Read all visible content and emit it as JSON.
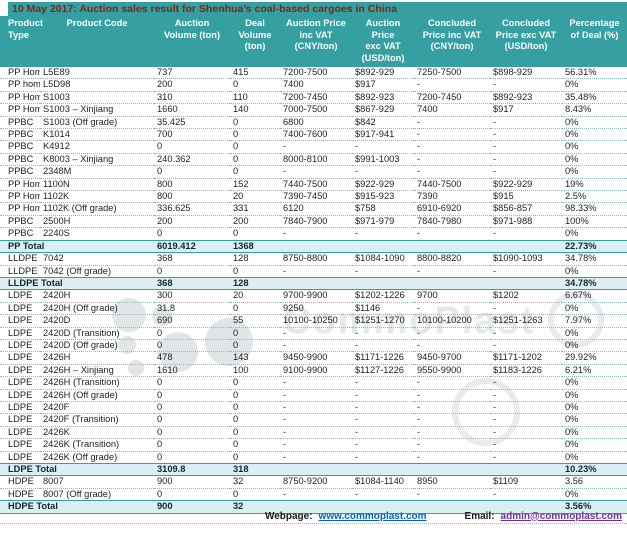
{
  "title": "10 May 2017: Auction sales result for Shenhua’s coal-based cargoes in China",
  "colors": {
    "header_teal": "#359fa1",
    "title_text": "#7b2715",
    "total_row_bg": "#daeef3",
    "row_divider": "#8fb9bf",
    "webpage_link": "#0563c1",
    "email_link": "#7030a0"
  },
  "columns": [
    {
      "key": "product-type",
      "label": "Product\nType"
    },
    {
      "key": "product-code",
      "label": "Product Code"
    },
    {
      "key": "auction-volume",
      "label": "Auction\nVolume (ton)"
    },
    {
      "key": "deal-volume",
      "label": "Deal\nVolume\n(ton)"
    },
    {
      "key": "auction-price-inc-vat",
      "label": "Auction Price\ninc VAT\n(CNY/ton)"
    },
    {
      "key": "auction-price-exc-vat",
      "label": "Auction\nPrice\nexc VAT\n(USD/ton)"
    },
    {
      "key": "concluded-price-inc-vat",
      "label": "Concluded\nPrice inc VAT\n(CNY/ton)"
    },
    {
      "key": "concluded-price-exc-vat",
      "label": "Concluded\nPrice exc VAT\n(USD/ton)"
    },
    {
      "key": "deal-percentage",
      "label": "Percentage\nof Deal (%)"
    }
  ],
  "rows": [
    {
      "total": false,
      "cells": [
        "PP Homo",
        "L5E89",
        "737",
        "415",
        "7200-7500",
        "$892-929",
        "7250-7500",
        "$898-929",
        "56.31%"
      ]
    },
    {
      "total": false,
      "cells": [
        "PP homo",
        "L5D98",
        "200",
        "0",
        "7400",
        "$917",
        "-",
        "-",
        "0%"
      ]
    },
    {
      "total": false,
      "cells": [
        "PP Homo",
        "S1003",
        "310",
        "110",
        "7200-7450",
        "$892-923",
        "7200-7450",
        "$892-923",
        "35.48%"
      ]
    },
    {
      "total": false,
      "cells": [
        "PP Homo",
        "S1003 – Xinjiang",
        "1660",
        "140",
        "7000-7500",
        "$867-929",
        "7400",
        "$917",
        "8.43%"
      ]
    },
    {
      "total": false,
      "cells": [
        "PPBC",
        "S1003 (Off grade)",
        "35.425",
        "0",
        "6800",
        "$842",
        "-",
        "-",
        "0%"
      ]
    },
    {
      "total": false,
      "cells": [
        "PPBC",
        "K1014",
        "700",
        "0",
        "7400-7600",
        "$917-941",
        "-",
        "-",
        "0%"
      ]
    },
    {
      "total": false,
      "cells": [
        "PPBC",
        "K4912",
        "0",
        "0",
        "-",
        "-",
        "-",
        "-",
        "0%"
      ]
    },
    {
      "total": false,
      "cells": [
        "PPBC",
        "K8003 – Xinjiang",
        "240.362",
        "0",
        "8000-8100",
        "$991-1003",
        "-",
        "-",
        "0%"
      ]
    },
    {
      "total": false,
      "cells": [
        "PPBC",
        "2348M",
        "0",
        "0",
        "-",
        "-",
        "-",
        "-",
        "0%"
      ]
    },
    {
      "total": false,
      "cells": [
        "PP Homo",
        "1100N",
        "800",
        "152",
        "7440-7500",
        "$922-929",
        "7440-7500",
        "$922-929",
        "19%"
      ]
    },
    {
      "total": false,
      "cells": [
        "PP Homo",
        "1102K",
        "800",
        "20",
        "7390-7450",
        "$915-923",
        "7390",
        "$915",
        "2.5%"
      ]
    },
    {
      "total": false,
      "cells": [
        "PP Homo",
        "1102K (Off grade)",
        "336.625",
        "331",
        "6120",
        "$758",
        "6910-6920",
        "$856-857",
        "98.33%"
      ]
    },
    {
      "total": false,
      "cells": [
        "PPBC",
        "2500H",
        "200",
        "200",
        "7840-7900",
        "$971-979",
        "7840-7980",
        "$971-988",
        "100%"
      ]
    },
    {
      "total": false,
      "cells": [
        "PPBC",
        "2240S",
        "0",
        "0",
        "-",
        "-",
        "-",
        "-",
        "0%"
      ]
    },
    {
      "total": true,
      "cells": [
        "PP Total",
        "",
        "6019.412",
        "1368",
        "",
        "",
        "",
        "",
        "22.73%"
      ]
    },
    {
      "total": false,
      "cells": [
        "LLDPE",
        "7042",
        "368",
        "128",
        "8750-8800",
        "$1084-1090",
        "8800-8820",
        "$1090-1093",
        "34.78%"
      ]
    },
    {
      "total": false,
      "cells": [
        "LLDPE",
        "7042 (Off grade)",
        "0",
        "0",
        "-",
        "-",
        "-",
        "-",
        "0%"
      ]
    },
    {
      "total": true,
      "cells": [
        "LLDPE Total",
        "",
        "368",
        "128",
        "",
        "",
        "",
        "",
        "34.78%"
      ]
    },
    {
      "total": false,
      "cells": [
        "LDPE",
        "2420H",
        "300",
        "20",
        "9700-9900",
        "$1202-1226",
        "9700",
        "$1202",
        "6.67%"
      ]
    },
    {
      "total": false,
      "cells": [
        "LDPE",
        "2420H (Off grade)",
        "31.8",
        "0",
        "9250",
        "$1146",
        "-",
        "-",
        "0%"
      ]
    },
    {
      "total": false,
      "cells": [
        "LDPE",
        "2420D",
        "690",
        "55",
        "10100-10250",
        "$1251-1270",
        "10100-10200",
        "$1251-1263",
        "7.97%"
      ]
    },
    {
      "total": false,
      "cells": [
        "LDPE",
        "2420D (Transition)",
        "0",
        "0",
        "-",
        "-",
        "-",
        "-",
        "0%"
      ]
    },
    {
      "total": false,
      "cells": [
        "LDPE",
        "2420D (Off grade)",
        "0",
        "0",
        "-",
        "-",
        "-",
        "-",
        "0%"
      ]
    },
    {
      "total": false,
      "cells": [
        "LDPE",
        "2426H",
        "478",
        "143",
        "9450-9900",
        "$1171-1226",
        "9450-9700",
        "$1171-1202",
        "29.92%"
      ]
    },
    {
      "total": false,
      "cells": [
        "LDPE",
        "2426H – Xinjiang",
        "1610",
        "100",
        "9100-9900",
        "$1127-1226",
        "9550-9900",
        "$1183-1226",
        "6.21%"
      ]
    },
    {
      "total": false,
      "cells": [
        "LDPE",
        "2426H (Transition)",
        "0",
        "0",
        "-",
        "-",
        "-",
        "-",
        "0%"
      ]
    },
    {
      "total": false,
      "cells": [
        "LDPE",
        "2426H (Off grade)",
        "0",
        "0",
        "-",
        "-",
        "-",
        "-",
        "0%"
      ]
    },
    {
      "total": false,
      "cells": [
        "LDPE",
        "2420F",
        "0",
        "0",
        "-",
        "-",
        "-",
        "-",
        "0%"
      ]
    },
    {
      "total": false,
      "cells": [
        "LDPE",
        "2420F (Transition)",
        "0",
        "0",
        "-",
        "-",
        "-",
        "-",
        "0%"
      ]
    },
    {
      "total": false,
      "cells": [
        "LDPE",
        "2426K",
        "0",
        "0",
        "-",
        "-",
        "-",
        "-",
        "0%"
      ]
    },
    {
      "total": false,
      "cells": [
        "LDPE",
        "2426K (Transition)",
        "0",
        "0",
        "-",
        "-",
        "-",
        "-",
        "0%"
      ]
    },
    {
      "total": false,
      "cells": [
        "LDPE",
        "2426K (Off grade)",
        "0",
        "0",
        "-",
        "-",
        "-",
        "-",
        "0%"
      ]
    },
    {
      "total": true,
      "cells": [
        "LDPE Total",
        "",
        "3109.8",
        "318",
        "",
        "",
        "",
        "",
        "10.23%"
      ]
    },
    {
      "total": false,
      "cells": [
        "HDPE",
        "8007",
        "900",
        "32",
        "8750-9200",
        "$1084-1140",
        "8950",
        "$1109",
        "3.56"
      ]
    },
    {
      "total": false,
      "cells": [
        "HDPE",
        "8007 (Off grade)",
        "0",
        "0",
        "-",
        "-",
        "-",
        "-",
        "0%"
      ]
    },
    {
      "total": true,
      "cells": [
        "HDPE Total",
        "",
        "900",
        "32",
        "",
        "",
        "",
        "",
        "3.56%"
      ]
    }
  ],
  "footer": {
    "webpage_label": "Webpage:",
    "webpage_url": "www.commoplast.com",
    "email_label": "Email:",
    "email_address": "admin@commoplast.com"
  },
  "watermark": {
    "text": "CommoPlast"
  }
}
